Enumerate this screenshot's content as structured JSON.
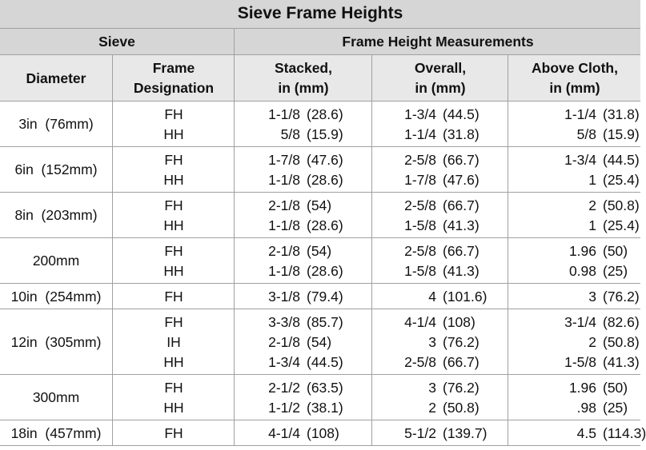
{
  "title": "Sieve Frame Heights",
  "header": {
    "sieve": "Sieve",
    "measurements": "Frame Height Measurements",
    "columns": [
      [
        "Diameter"
      ],
      [
        "Frame",
        "Designation"
      ],
      [
        "Stacked,",
        "in (mm)"
      ],
      [
        "Overall,",
        "in (mm)"
      ],
      [
        "Above Cloth,",
        "in (mm)"
      ]
    ]
  },
  "groups": [
    {
      "diameter": "3in  (76mm)",
      "rows": [
        [
          "FH",
          "1-1/8",
          "(28.6)",
          "1-3/4",
          "(44.5)",
          "1-1/4",
          "(31.8)"
        ],
        [
          "HH",
          "5/8",
          "(15.9)",
          "1-1/4",
          "(31.8)",
          "5/8",
          "(15.9)"
        ]
      ]
    },
    {
      "diameter": "6in  (152mm)",
      "rows": [
        [
          "FH",
          "1-7/8",
          "(47.6)",
          "2-5/8",
          "(66.7)",
          "1-3/4",
          "(44.5)"
        ],
        [
          "HH",
          "1-1/8",
          "(28.6)",
          "1-7/8",
          "(47.6)",
          "1",
          "(25.4)"
        ]
      ]
    },
    {
      "diameter": "8in  (203mm)",
      "rows": [
        [
          "FH",
          "2-1/8",
          "(54)",
          "2-5/8",
          "(66.7)",
          "2",
          "(50.8)"
        ],
        [
          "HH",
          "1-1/8",
          "(28.6)",
          "1-5/8",
          "(41.3)",
          "1",
          "(25.4)"
        ]
      ]
    },
    {
      "diameter": "200mm",
      "rows": [
        [
          "FH",
          "2-1/8",
          "(54)",
          "2-5/8",
          "(66.7)",
          "1.96",
          "(50)"
        ],
        [
          "HH",
          "1-1/8",
          "(28.6)",
          "1-5/8",
          "(41.3)",
          "0.98",
          "(25)"
        ]
      ]
    },
    {
      "diameter": "10in  (254mm)",
      "rows": [
        [
          "FH",
          "3-1/8",
          "(79.4)",
          "4",
          "(101.6)",
          "3",
          "(76.2)"
        ]
      ]
    },
    {
      "diameter": "12in  (305mm)",
      "rows": [
        [
          "FH",
          "3-3/8",
          "(85.7)",
          "4-1/4",
          "(108)",
          "3-1/4",
          "(82.6)"
        ],
        [
          "IH",
          "2-1/8",
          "(54)",
          "3",
          "(76.2)",
          "2",
          "(50.8)"
        ],
        [
          "HH",
          "1-3/4",
          "(44.5)",
          "2-5/8",
          "(66.7)",
          "1-5/8",
          "(41.3)"
        ]
      ]
    },
    {
      "diameter": "300mm",
      "rows": [
        [
          "FH",
          "2-1/2",
          "(63.5)",
          "3",
          "(76.2)",
          "1.96",
          "(50)"
        ],
        [
          "HH",
          "1-1/2",
          "(38.1)",
          "2",
          "(50.8)",
          ".98",
          "(25)"
        ]
      ]
    },
    {
      "diameter": "18in  (457mm)",
      "rows": [
        [
          "FH",
          "4-1/4",
          "(108)",
          "5-1/2",
          "(139.7)",
          "4.5",
          "(114.3)"
        ]
      ]
    }
  ]
}
